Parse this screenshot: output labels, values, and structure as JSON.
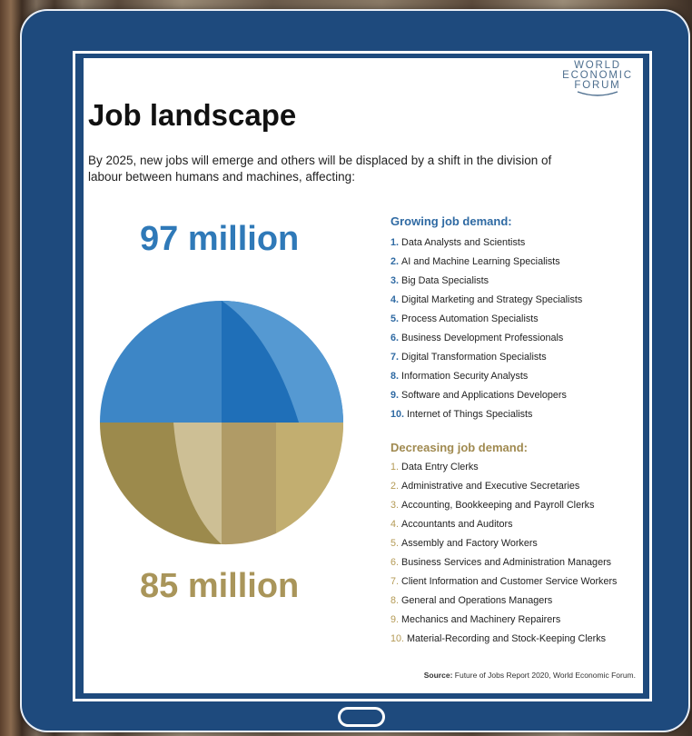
{
  "logo": {
    "line1": "WORLD",
    "line2": "ECONOMIC",
    "line3": "FORUM"
  },
  "title": "Job landscape",
  "intro": "By 2025, new jobs will emerge and others will be displaced by a shift in the division of labour between humans and machines, affecting:",
  "growing": {
    "total": "97 million",
    "heading": "Growing job demand:",
    "items": [
      {
        "num": "1.",
        "label": "Data Analysts and Scientists"
      },
      {
        "num": "2.",
        "label": "AI and Machine Learning Specialists"
      },
      {
        "num": "3.",
        "label": "Big Data Specialists"
      },
      {
        "num": "4.",
        "label": "Digital Marketing and Strategy Specialists"
      },
      {
        "num": "5.",
        "label": "Process Automation Specialists"
      },
      {
        "num": "6.",
        "label": "Business Development Professionals"
      },
      {
        "num": "7.",
        "label": "Digital Transformation Specialists"
      },
      {
        "num": "8.",
        "label": "Information Security Analysts"
      },
      {
        "num": "9.",
        "label": "Software and Applications Developers"
      },
      {
        "num": "10.",
        "label": "Internet of Things Specialists"
      }
    ]
  },
  "decreasing": {
    "total": "85 million",
    "heading": "Decreasing job demand:",
    "items": [
      {
        "num": "1.",
        "label": "Data Entry Clerks"
      },
      {
        "num": "2.",
        "label": "Administrative and Executive Secretaries"
      },
      {
        "num": "3.",
        "label": "Accounting, Bookkeeping and Payroll Clerks"
      },
      {
        "num": "4.",
        "label": "Accountants and Auditors"
      },
      {
        "num": "5.",
        "label": "Assembly and Factory Workers"
      },
      {
        "num": "6.",
        "label": "Business Services and Administration Managers"
      },
      {
        "num": "7.",
        "label": "Client Information and Customer Service Workers"
      },
      {
        "num": "8.",
        "label": "General and Operations Managers"
      },
      {
        "num": "9.",
        "label": "Mechanics and Machinery Repairers"
      },
      {
        "num": "10.",
        "label": "Material-Recording and Stock-Keeping Clerks"
      }
    ]
  },
  "source": {
    "label": "Source:",
    "text": "Future of Jobs Report 2020, World Economic Forum."
  },
  "colors": {
    "tablet": "#1e4a7d",
    "growing_blue": "#2f79b8",
    "decreasing_gold": "#a9955a"
  }
}
